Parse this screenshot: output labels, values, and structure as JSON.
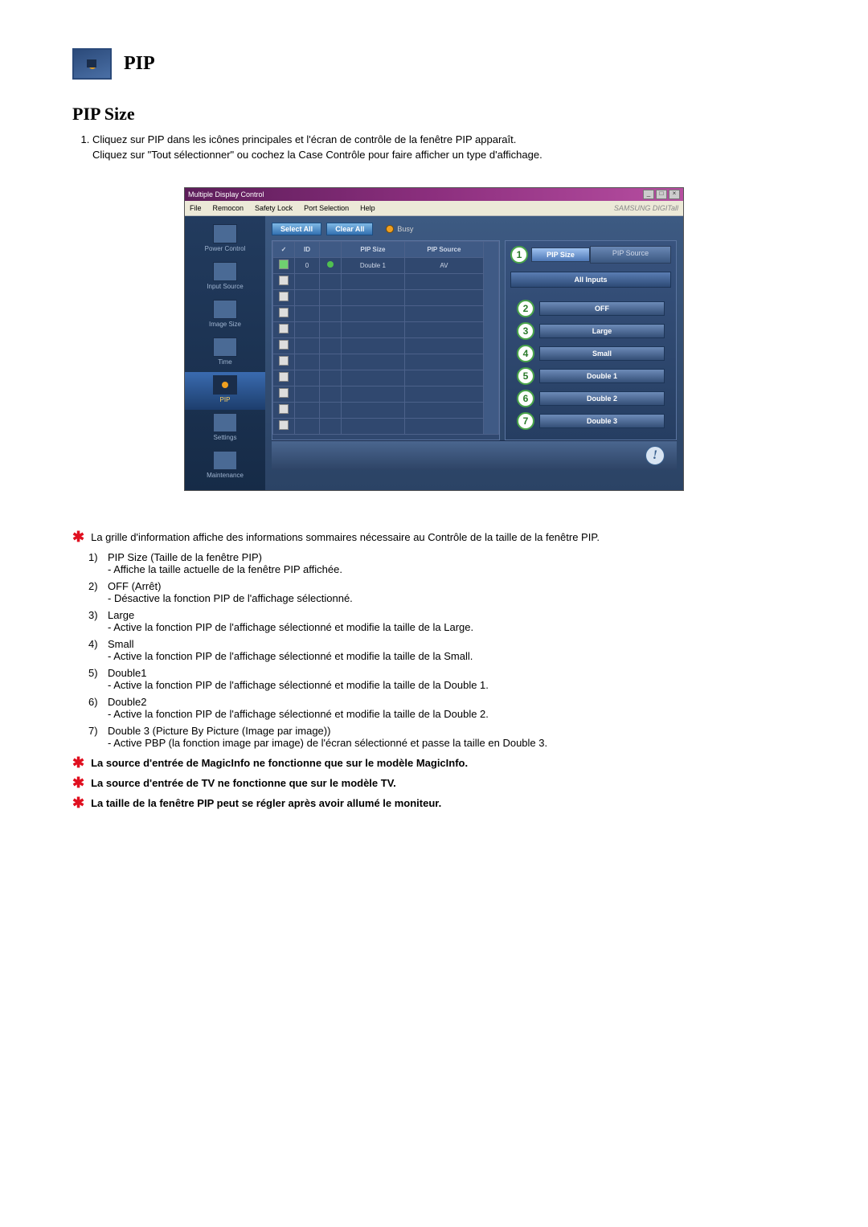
{
  "header": {
    "title": "PIP",
    "section": "PIP Size"
  },
  "intro": {
    "line1": "Cliquez sur PIP dans les icônes principales et l'écran de contrôle de la fenêtre PIP apparaît.",
    "line2": "Cliquez sur \"Tout sélectionner\" ou cochez la Case Contrôle pour faire afficher un type d'affichage."
  },
  "window": {
    "title": "Multiple Display Control",
    "min": "_",
    "max": "□",
    "close": "×",
    "menu": {
      "file": "File",
      "remocon": "Remocon",
      "safety": "Safety Lock",
      "port": "Port Selection",
      "help": "Help",
      "brand": "SAMSUNG DIGITall"
    },
    "sidebar": {
      "power": "Power Control",
      "input": "Input Source",
      "image": "Image Size",
      "time": "Time",
      "pip": "PIP",
      "settings": "Settings",
      "maint": "Maintenance"
    },
    "toolbar": {
      "select_all": "Select All",
      "clear_all": "Clear All",
      "busy": "Busy"
    },
    "grid": {
      "col_chk": "✓",
      "col_id": "ID",
      "col_status": "",
      "col_pipsize": "PIP Size",
      "col_pipsource": "PIP Source",
      "row_id": "0",
      "row_pipsize": "Double 1",
      "row_pipsource": "AV"
    },
    "panel": {
      "tab_size": "PIP Size",
      "tab_source": "PIP Source",
      "all_inputs": "All Inputs",
      "options": [
        {
          "n": "2",
          "label": "OFF"
        },
        {
          "n": "3",
          "label": "Large"
        },
        {
          "n": "4",
          "label": "Small"
        },
        {
          "n": "5",
          "label": "Double 1"
        },
        {
          "n": "6",
          "label": "Double 2"
        },
        {
          "n": "7",
          "label": "Double 3"
        }
      ],
      "callout1": "1"
    }
  },
  "defs": {
    "star1": "La grille d'information affiche des informations sommaires nécessaire au Contrôle de la taille de la fenêtre PIP.",
    "items": [
      {
        "n": "1)",
        "title": "PIP Size (Taille de la fenêtre PIP)",
        "sub": "- Affiche la taille actuelle de la fenêtre PIP affichée."
      },
      {
        "n": "2)",
        "title": "OFF (Arrêt)",
        "sub": "- Désactive la fonction PIP de l'affichage sélectionné."
      },
      {
        "n": "3)",
        "title": "Large",
        "sub": "- Active la fonction PIP de l'affichage sélectionné et modifie la taille de la Large."
      },
      {
        "n": "4)",
        "title": "Small",
        "sub": "- Active la fonction PIP de l'affichage sélectionné et modifie la taille de la Small."
      },
      {
        "n": "5)",
        "title": "Double1",
        "sub": "- Active la fonction PIP de l'affichage sélectionné et modifie la taille de la Double 1."
      },
      {
        "n": "6)",
        "title": "Double2",
        "sub": "- Active la fonction PIP de l'affichage sélectionné et modifie la taille de la Double 2."
      },
      {
        "n": "7)",
        "title": "Double 3 (Picture By Picture (Image par image))",
        "sub": "- Active PBP (la fonction image par image) de l'écran sélectionné et passe la taille en Double 3."
      }
    ],
    "note1": "La source d'entrée de MagicInfo ne fonctionne que sur le modèle MagicInfo.",
    "note2": "La source d'entrée de TV ne fonctionne que sur le modèle TV.",
    "note3": "La taille de la fenêtre PIP peut se régler après avoir allumé le moniteur."
  }
}
